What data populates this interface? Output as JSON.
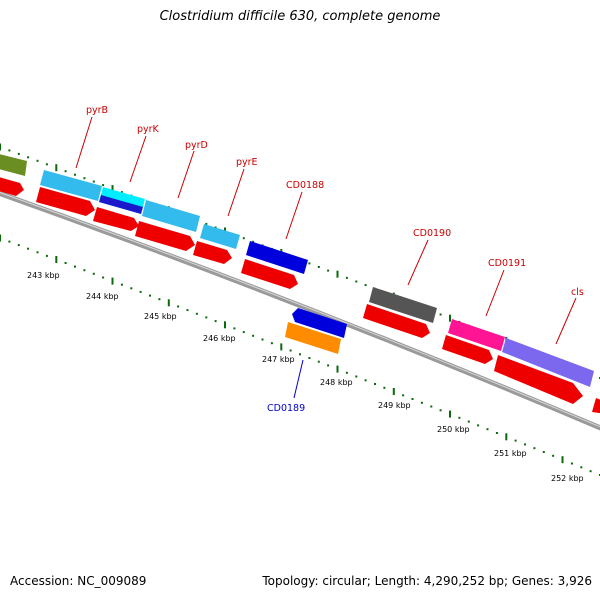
{
  "title": "Clostridium difficile 630, complete genome",
  "footer": {
    "accession": "Accession: NC_009089",
    "topology": "Topology: circular; Length: 4,290,252 bp; Genes: 3,926"
  },
  "colors": {
    "label_red": "#cc0000",
    "label_blue": "#0000cc",
    "tick_green": "#006600",
    "backbone": "#808080"
  },
  "scale_labels": [
    "243 kbp",
    "244 kbp",
    "245 kbp",
    "246 kbp",
    "247 kbp",
    "248 kbp",
    "249 kbp",
    "250 kbp",
    "251 kbp",
    "252 kbp"
  ],
  "genes": [
    {
      "name": "pyrB",
      "color": "red"
    },
    {
      "name": "pyrK",
      "color": "red"
    },
    {
      "name": "pyrD",
      "color": "red"
    },
    {
      "name": "pyrE",
      "color": "red"
    },
    {
      "name": "CD0188",
      "color": "red"
    },
    {
      "name": "CD0189",
      "color": "blue"
    },
    {
      "name": "CD0190",
      "color": "red"
    },
    {
      "name": "CD0191",
      "color": "red"
    },
    {
      "name": "cls",
      "color": "red"
    }
  ],
  "feature_colors": {
    "olive": "#6b8e23",
    "cyan": "#33ccee",
    "bright_cyan": "#00ffff",
    "blue": "#0000dd",
    "gray": "#555555",
    "magenta": "#ff1493",
    "purple": "#7b68ee",
    "orange": "#ff8c00",
    "red_cds": "#ff0000"
  }
}
